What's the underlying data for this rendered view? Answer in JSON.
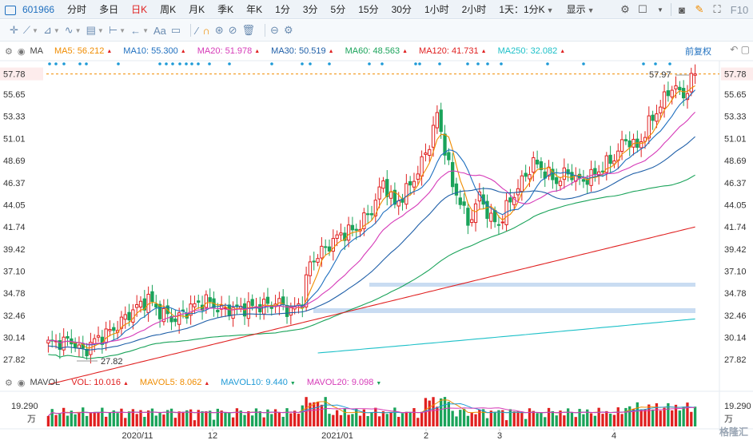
{
  "toolbar": {
    "stock_code": "601966",
    "periods": [
      {
        "label": "分时",
        "active": false
      },
      {
        "label": "多日",
        "active": false
      },
      {
        "label": "日K",
        "active": true
      },
      {
        "label": "周K",
        "active": false
      },
      {
        "label": "月K",
        "active": false
      },
      {
        "label": "季K",
        "active": false
      },
      {
        "label": "年K",
        "active": false
      },
      {
        "label": "1分",
        "active": false
      },
      {
        "label": "3分",
        "active": false
      },
      {
        "label": "5分",
        "active": false
      },
      {
        "label": "15分",
        "active": false
      },
      {
        "label": "30分",
        "active": false
      },
      {
        "label": "1小时",
        "active": false
      },
      {
        "label": "2小时",
        "active": false
      }
    ],
    "interval_select": "1天：1分K",
    "display_select": "显示",
    "f10_label": "F10"
  },
  "drawing_tools": [
    "crosshair",
    "line",
    "channel",
    "wave",
    "fib",
    "measure",
    "arrow",
    "text",
    "comment",
    "pen",
    "magnet",
    "lock",
    "hide",
    "delete",
    "link",
    "settings"
  ],
  "ma_legend": {
    "label": "MA",
    "items": [
      {
        "name": "MA5",
        "value": "56.212",
        "color": "#f08c00"
      },
      {
        "name": "MA10",
        "value": "55.300",
        "color": "#1e6fbf"
      },
      {
        "name": "MA20",
        "value": "51.978",
        "color": "#d63ab8"
      },
      {
        "name": "MA30",
        "value": "50.519",
        "color": "#1f5fa8"
      },
      {
        "name": "MA60",
        "value": "48.563",
        "color": "#1aa35a"
      },
      {
        "name": "MA120",
        "value": "41.731",
        "color": "#e02020"
      },
      {
        "name": "MA250",
        "value": "32.082",
        "color": "#1cc0c8"
      }
    ],
    "fuquan": "前复权"
  },
  "price_axis": {
    "ticks": [
      "57.78",
      "55.65",
      "53.33",
      "51.01",
      "48.69",
      "46.37",
      "44.05",
      "41.74",
      "39.42",
      "37.10",
      "34.78",
      "32.46",
      "30.14",
      "27.82"
    ],
    "current_price": "57.78",
    "high_label": "57.97",
    "low_label": "27.82"
  },
  "x_axis": {
    "labels": [
      "2020/11",
      "12",
      "2021/01",
      "2",
      "3",
      "4"
    ]
  },
  "volume_legend": {
    "label": "MAVOL",
    "items": [
      {
        "name": "VOL",
        "value": "10.016",
        "color": "#e02020",
        "trend": "up"
      },
      {
        "name": "MAVOL5",
        "value": "8.062",
        "color": "#f08c00",
        "trend": "up"
      },
      {
        "name": "MAVOL10",
        "value": "9.440",
        "color": "#1e9ad6",
        "trend": "down"
      },
      {
        "name": "MAVOL20",
        "value": "9.098",
        "color": "#d63ab8",
        "trend": "down"
      }
    ],
    "axis_top": "19.290",
    "axis_unit": "万"
  },
  "colors": {
    "up": "#e02020",
    "down": "#1aa35a"
  },
  "watermark": "格隆汇",
  "chart_data": {
    "type": "candlestick",
    "price_range": [
      26.5,
      59.0
    ],
    "closes_start": 29.5,
    "closes_end": 57.78
  }
}
